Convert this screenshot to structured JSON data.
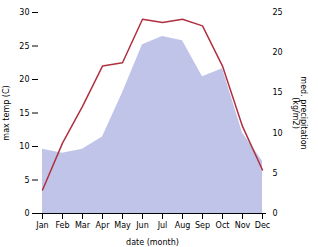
{
  "chart_data": {
    "type": "line",
    "categories": [
      "Jan",
      "Feb",
      "Mar",
      "Apr",
      "May",
      "Jun",
      "Jul",
      "Aug",
      "Sep",
      "Oct",
      "Nov",
      "Dec"
    ],
    "xlabel": "date (month)",
    "ylabel": "max temp (C)",
    "y2label": "med. precipitation\n(kg/m2)",
    "ylim": [
      0,
      30
    ],
    "yticks": [
      0,
      5,
      10,
      15,
      20,
      25,
      30
    ],
    "y2lim": [
      0,
      25
    ],
    "y2ticks": [
      0,
      5,
      10,
      15,
      20,
      25
    ],
    "grid": false,
    "series": [
      {
        "type": "area",
        "axis": "y2",
        "color": "#c0c4e8",
        "values": [
          8.0,
          7.5,
          8.0,
          9.5,
          15.0,
          21.0,
          22.0,
          21.5,
          17.0,
          18.0,
          10.0,
          6.5
        ]
      },
      {
        "type": "line",
        "color": "#b03040",
        "values": [
          3.5,
          10.5,
          16.0,
          22.0,
          22.5,
          29.0,
          28.5,
          29.0,
          28.0,
          22.0,
          13.0,
          6.5
        ]
      }
    ]
  }
}
